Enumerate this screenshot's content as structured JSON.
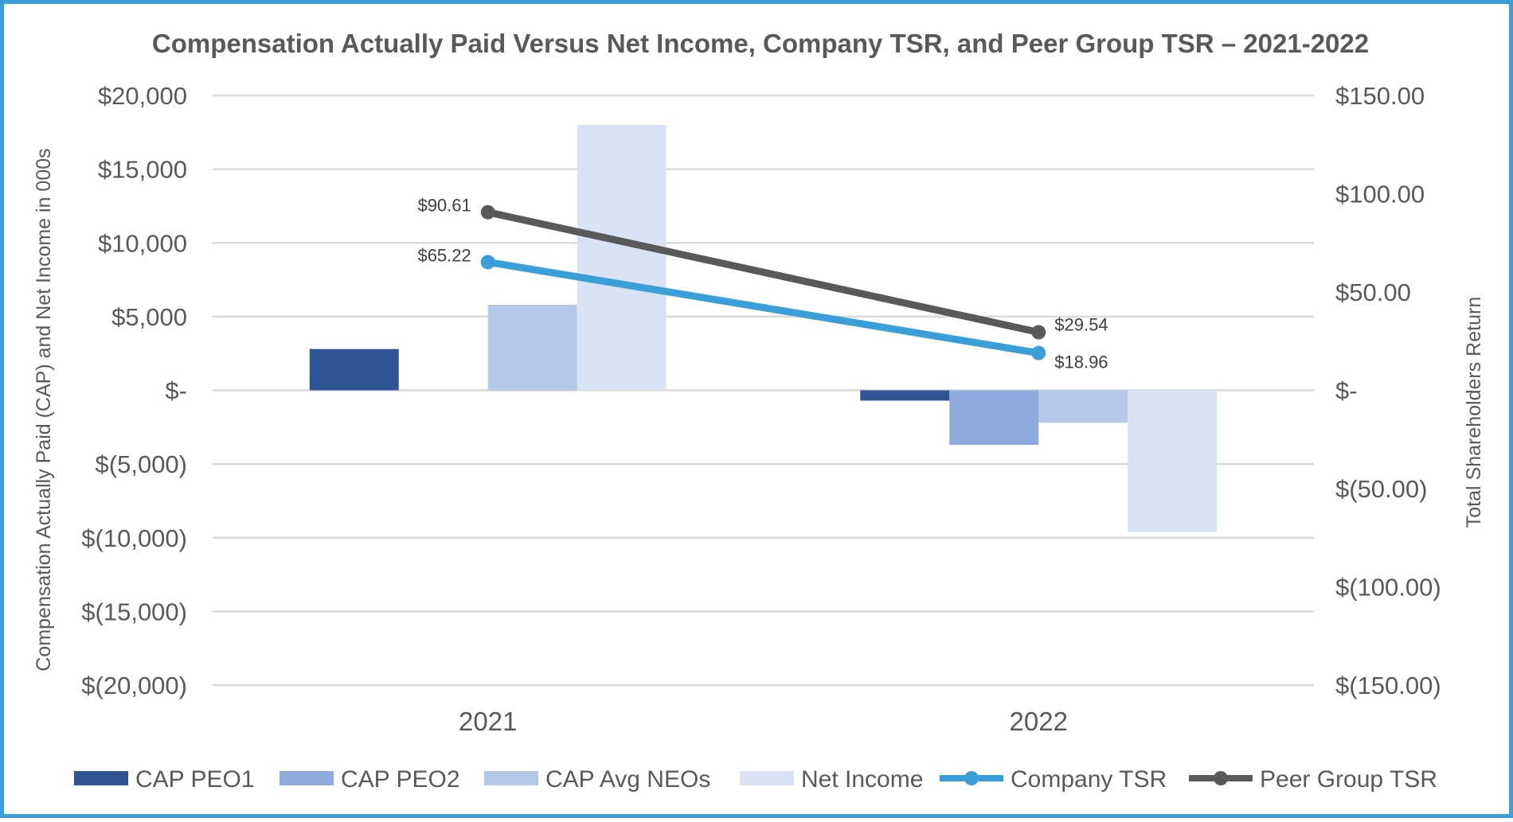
{
  "chart_data": {
    "type": "bar",
    "title": "Compensation Actually Paid Versus Net Income, Company TSR, and Peer Group TSR – 2021-2022",
    "categories": [
      "2021",
      "2022"
    ],
    "y_left": {
      "label": "Compensation Actually Paid (CAP) and Net Income in 000s",
      "ylim": [
        -20000,
        20000
      ],
      "ticks": [
        20000,
        15000,
        10000,
        5000,
        0,
        -5000,
        -10000,
        -15000,
        -20000
      ],
      "tick_labels": [
        "$20,000",
        "$15,000",
        "$10,000",
        "$5,000",
        "$-",
        "$(5,000)",
        "$(10,000)",
        "$(15,000)",
        "$(20,000)"
      ]
    },
    "y_right": {
      "label": "Total Shareholders Return",
      "ylim": [
        -150,
        150
      ],
      "ticks": [
        150,
        100,
        50,
        0,
        -50,
        -100,
        -150
      ],
      "tick_labels": [
        "$150.00",
        "$100.00",
        "$50.00",
        "$-",
        "$(50.00)",
        "$(100.00)",
        "$(150.00)"
      ]
    },
    "series": [
      {
        "name": "CAP PEO1",
        "kind": "bar",
        "axis": "left",
        "color": "#2f5597",
        "values": [
          2800,
          -700
        ]
      },
      {
        "name": "CAP PEO2",
        "kind": "bar",
        "axis": "left",
        "color": "#8faadc",
        "values": [
          null,
          -3700
        ]
      },
      {
        "name": "CAP Avg NEOs",
        "kind": "bar",
        "axis": "left",
        "color": "#b4c7e7",
        "values": [
          5800,
          -2200
        ]
      },
      {
        "name": "Net Income",
        "kind": "bar",
        "axis": "left",
        "color": "#dae3f3",
        "values": [
          18000,
          -9600
        ]
      },
      {
        "name": "Company TSR",
        "kind": "line",
        "axis": "right",
        "color": "#3a9fd8",
        "values": [
          65.22,
          18.96
        ],
        "labels": [
          "$65.22",
          "$18.96"
        ]
      },
      {
        "name": "Peer Group TSR",
        "kind": "line",
        "axis": "right",
        "color": "#595959",
        "values": [
          90.61,
          29.54
        ],
        "labels": [
          "$90.61",
          "$29.54"
        ]
      }
    ],
    "legend": {
      "position": "bottom"
    },
    "grid": true
  }
}
